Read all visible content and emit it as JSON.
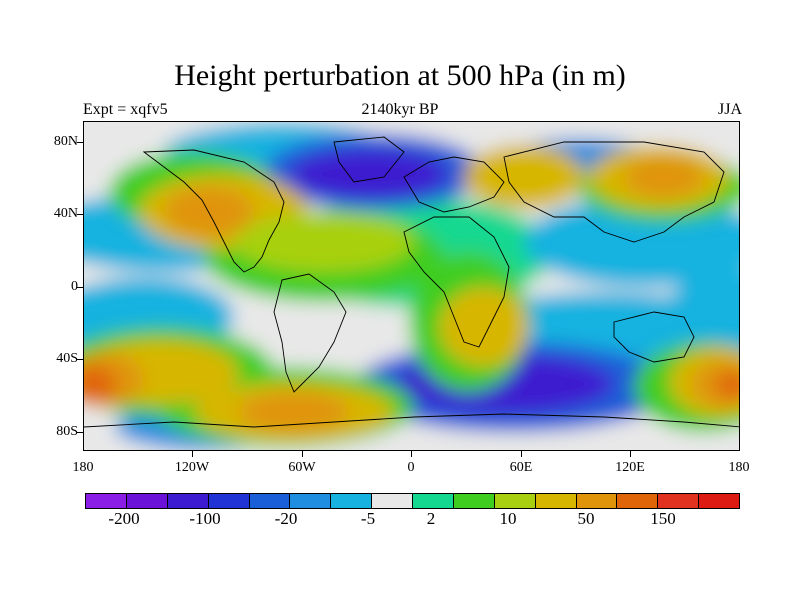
{
  "title": "Height perturbation at 500 hPa (in m)",
  "subtitle_left": "Expt = xqfv5",
  "subtitle_center": "2140kyr BP",
  "subtitle_right": "JJA",
  "lat_ticks": [
    "80N",
    "40N",
    "0",
    "40S",
    "80S"
  ],
  "lon_ticks": [
    "180",
    "120W",
    "60W",
    "0",
    "60E",
    "120E",
    "180"
  ],
  "colorbar": {
    "colors": [
      "#8a1ee6",
      "#6a12d8",
      "#3c1bd0",
      "#2233d6",
      "#1a5fd8",
      "#1f8ee0",
      "#18b2e0",
      "#e8e8e8",
      "#14d890",
      "#3fcd20",
      "#a8d010",
      "#d7b600",
      "#e0940a",
      "#e06508",
      "#e0321e",
      "#dd1b12"
    ],
    "labels": [
      "-200",
      "-100",
      "-20",
      "-5",
      "2",
      "10",
      "50",
      "150"
    ]
  },
  "map_colors": {
    "neutral": "#e8e8e8",
    "ocean_light_blue": "#18b2e0",
    "mid_blue": "#1f8ee0",
    "blue": "#1a5fd8",
    "deep_blue": "#3c1bd0",
    "teal_green": "#14d890",
    "green": "#3fcd20",
    "yellow_green": "#a8d010",
    "yellow": "#d7b600",
    "orange": "#e0940a",
    "dark_orange": "#e06508",
    "red": "#e0321e"
  }
}
